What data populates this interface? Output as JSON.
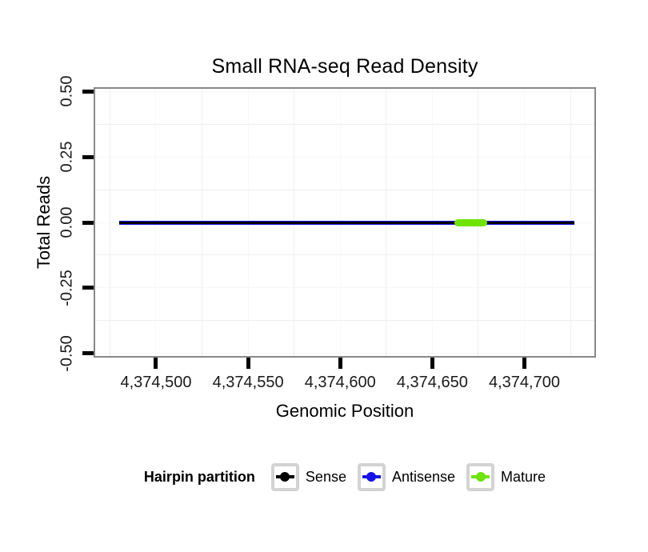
{
  "chart_data": {
    "type": "line",
    "title": "Small RNA-seq Read Density",
    "xlabel": "Genomic Position",
    "ylabel": "Total Reads",
    "xlim": [
      4374467,
      4374738
    ],
    "ylim": [
      -0.51,
      0.51
    ],
    "x_ticks": [
      {
        "value": 4374500,
        "label": "4,374,500"
      },
      {
        "value": 4374550,
        "label": "4,374,550"
      },
      {
        "value": 4374600,
        "label": "4,374,600"
      },
      {
        "value": 4374650,
        "label": "4,374,650"
      },
      {
        "value": 4374700,
        "label": "4,374,700"
      }
    ],
    "x_minor": [
      4374475,
      4374525,
      4374575,
      4374625,
      4374675,
      4374725
    ],
    "y_ticks": [
      {
        "value": 0.5,
        "label": "0.50"
      },
      {
        "value": 0.25,
        "label": "0.25"
      },
      {
        "value": 0,
        "label": "0.00"
      },
      {
        "value": -0.25,
        "label": "-0.25"
      },
      {
        "value": -0.5,
        "label": "-0.50"
      }
    ],
    "y_minor": [
      0.375,
      0.125,
      -0.125,
      -0.375
    ],
    "grid": {
      "major_color": "#f8f8f8",
      "minor_color": "#efefef",
      "grid_on": true
    },
    "panel": {
      "border_color": "#888888",
      "background": "#ffffff"
    },
    "tick_color": "#000000",
    "tick_label_color": "#1a1a1a",
    "series": [
      {
        "name": "Sense",
        "color": "#000000",
        "y": 0,
        "x_start": 4374480,
        "x_end": 4374727,
        "stroke_px": 3,
        "z": 2,
        "rounded": false
      },
      {
        "name": "Antisense",
        "color": "#1414e8",
        "y": 0,
        "x_start": 4374480,
        "x_end": 4374727,
        "stroke_px": 5,
        "z": 1,
        "rounded": false
      },
      {
        "name": "Mature",
        "color": "#6fe303",
        "y": 0,
        "x_start": 4374662,
        "x_end": 4374680,
        "stroke_px": 9,
        "z": 3,
        "rounded": true
      }
    ],
    "legend": {
      "title": "Hairpin partition",
      "position": "bottom",
      "key_border_color": "#d3d3d3",
      "entries": [
        {
          "label": "Sense",
          "color": "#000000"
        },
        {
          "label": "Antisense",
          "color": "#1414e8"
        },
        {
          "label": "Mature",
          "color": "#6fe303"
        }
      ]
    }
  }
}
